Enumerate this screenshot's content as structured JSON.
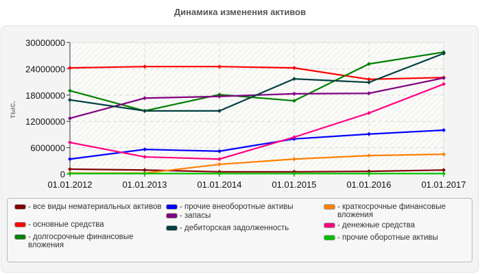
{
  "title": "Динамика изменения активов",
  "chart_data": {
    "type": "line",
    "title": "Динамика изменения активов",
    "xlabel": "",
    "ylabel": "тыс.",
    "ylim": [
      0,
      30000000
    ],
    "yticks": [
      "0",
      "6000000",
      "12000000",
      "18000000",
      "24000000",
      "30000000"
    ],
    "grid": true,
    "legend_position": "bottom",
    "categories": [
      "01.01.2012",
      "01.01.2013",
      "01.01.2014",
      "01.01.2015",
      "01.01.2016",
      "01.01.2017"
    ],
    "series": [
      {
        "name": "все виды нематериальных активов",
        "color": "#800000",
        "values": [
          1100000,
          900000,
          500000,
          500000,
          600000,
          900000
        ]
      },
      {
        "name": "основные средства",
        "color": "#ff0000",
        "values": [
          24200000,
          24500000,
          24500000,
          24200000,
          21600000,
          22000000
        ]
      },
      {
        "name": "долгосрочные финансовые вложения",
        "color": "#008000",
        "values": [
          19000000,
          14400000,
          18100000,
          16700000,
          25100000,
          27800000
        ]
      },
      {
        "name": "прочие внеоборотные активы",
        "color": "#0000ff",
        "values": [
          3400000,
          5600000,
          5200000,
          8000000,
          9100000,
          10000000
        ]
      },
      {
        "name": "запасы",
        "color": "#800080",
        "values": [
          12700000,
          17300000,
          17700000,
          18300000,
          18400000,
          21900000
        ]
      },
      {
        "name": "дебиторская задолженность",
        "color": "#004040",
        "values": [
          16900000,
          14400000,
          14400000,
          21700000,
          20900000,
          27500000
        ]
      },
      {
        "name": "краткосрочные финансовые вложения",
        "color": "#ff8000",
        "values": [
          200000,
          200000,
          2200000,
          3400000,
          4200000,
          4500000
        ]
      },
      {
        "name": "денежные средства",
        "color": "#ff0080",
        "values": [
          7200000,
          3900000,
          3400000,
          8400000,
          13900000,
          20500000
        ]
      },
      {
        "name": "прочие оборотные активы",
        "color": "#00c000",
        "values": [
          100000,
          100000,
          100000,
          100000,
          100000,
          100000
        ]
      }
    ]
  },
  "legend": {
    "items": [
      {
        "label": "- все виды нематериальных активов",
        "color": "#800000"
      },
      {
        "label": "- основные средства",
        "color": "#ff0000"
      },
      {
        "label": "- долгосрочные финансовые вложения",
        "color": "#008000"
      },
      {
        "label": "- прочие внеоборотные активы",
        "color": "#0000ff"
      },
      {
        "label": "- запасы",
        "color": "#800080"
      },
      {
        "label": "- дебиторская задолженность",
        "color": "#004040"
      },
      {
        "label": "- краткосрочные финансовые вложения",
        "color": "#ff8000"
      },
      {
        "label": "- денежные средства",
        "color": "#ff0080"
      },
      {
        "label": "- прочие оборотные активы",
        "color": "#00c000"
      }
    ]
  }
}
